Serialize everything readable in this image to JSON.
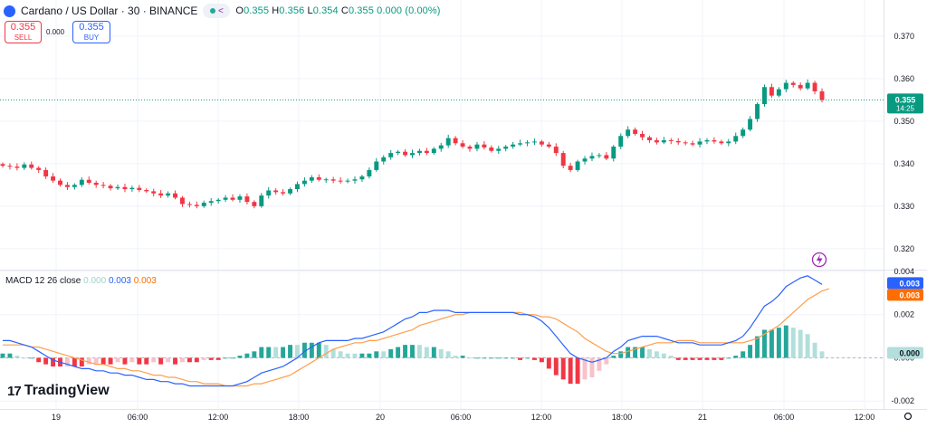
{
  "header": {
    "title": "Cardano / US Dollar · 30 · BINANCE",
    "ohlc": {
      "o_label": "O",
      "o": "0.355",
      "h_label": "H",
      "h": "0.356",
      "l_label": "L",
      "l": "0.354",
      "c_label": "C",
      "c": "0.355",
      "change": "0.000 (0.00%)"
    }
  },
  "trade": {
    "sell_price": "0.355",
    "sell_label": "SELL",
    "spread": "0.000",
    "buy_price": "0.355",
    "buy_label": "BUY"
  },
  "macd_legend": {
    "title": "MACD 12 26 close",
    "hist": "0.000",
    "macd": "0.003",
    "signal": "0.003"
  },
  "logo": {
    "mark": "17",
    "text": "TradingView"
  },
  "colors": {
    "up": "#089981",
    "down": "#f23645",
    "hist_up_strong": "#26a69a",
    "hist_up_weak": "#b2dfdb",
    "hist_down_strong": "#f23645",
    "hist_down_weak": "#f7c2c9",
    "macd": "#2962ff",
    "signal": "#ff9e4c",
    "price_line": "#089981"
  },
  "chart_data": {
    "type": "candlestick",
    "title": "Cardano / US Dollar · 30 · BINANCE",
    "price_axis": {
      "ticks": [
        "0.370",
        "0.360",
        "0.350",
        "0.340",
        "0.330",
        "0.320"
      ],
      "range": [
        0.3155,
        0.3755
      ]
    },
    "last_price": {
      "value": "0.355",
      "countdown": "14:25"
    },
    "time_axis": {
      "labels": [
        "19",
        "06:00",
        "12:00",
        "18:00",
        "20",
        "06:00",
        "12:00",
        "18:00",
        "21",
        "06:00",
        "12:00"
      ]
    },
    "close_approx": [
      0.3395,
      0.3393,
      0.339,
      0.3398,
      0.339,
      0.3385,
      0.337,
      0.336,
      0.335,
      0.3345,
      0.335,
      0.3362,
      0.3355,
      0.335,
      0.3348,
      0.3342,
      0.3345,
      0.334,
      0.3343,
      0.3338,
      0.3335,
      0.333,
      0.3325,
      0.333,
      0.332,
      0.3305,
      0.3303,
      0.33,
      0.3308,
      0.3312,
      0.3315,
      0.332,
      0.3315,
      0.3323,
      0.331,
      0.33,
      0.3325,
      0.3337,
      0.3333,
      0.333,
      0.334,
      0.3352,
      0.336,
      0.3368,
      0.3362,
      0.3363,
      0.336,
      0.3358,
      0.336,
      0.3363,
      0.337,
      0.3385,
      0.3405,
      0.3415,
      0.3425,
      0.3428,
      0.342,
      0.3425,
      0.343,
      0.3425,
      0.3435,
      0.3443,
      0.346,
      0.3448,
      0.344,
      0.3435,
      0.3445,
      0.3438,
      0.343,
      0.3435,
      0.344,
      0.3445,
      0.3448,
      0.345,
      0.3452,
      0.3445,
      0.344,
      0.3425,
      0.3395,
      0.3385,
      0.3405,
      0.3412,
      0.3418,
      0.342,
      0.3412,
      0.344,
      0.3465,
      0.348,
      0.347,
      0.3462,
      0.3455,
      0.345,
      0.3455,
      0.3453,
      0.345,
      0.3448,
      0.3445,
      0.3452,
      0.3455,
      0.3452,
      0.3448,
      0.3452,
      0.3465,
      0.348,
      0.3505,
      0.354,
      0.358,
      0.356,
      0.3575,
      0.359,
      0.3585,
      0.3577,
      0.359,
      0.357,
      0.355
    ],
    "macd_axis": {
      "ticks": [
        "0.004",
        "0.002",
        "0.000",
        "-0.002"
      ],
      "range": [
        -0.0022,
        0.004
      ]
    },
    "macd_approx": [
      0.0008,
      0.0008,
      0.0007,
      0.0006,
      0.0005,
      0.0003,
      0.0001,
      -0.0001,
      -0.0002,
      -0.0003,
      -0.0004,
      -0.0005,
      -0.0005,
      -0.0006,
      -0.0006,
      -0.0007,
      -0.0007,
      -0.0008,
      -0.0008,
      -0.0009,
      -0.001,
      -0.001,
      -0.0011,
      -0.0011,
      -0.0012,
      -0.0012,
      -0.0013,
      -0.0013,
      -0.0013,
      -0.0013,
      -0.0013,
      -0.0013,
      -0.0013,
      -0.0012,
      -0.0011,
      -0.0009,
      -0.0007,
      -0.0006,
      -0.0005,
      -0.0004,
      -0.0002,
      0.0,
      0.0003,
      0.0005,
      0.0007,
      0.0008,
      0.0008,
      0.0008,
      0.0008,
      0.0009,
      0.0009,
      0.001,
      0.0011,
      0.0012,
      0.0014,
      0.0016,
      0.0018,
      0.0019,
      0.0021,
      0.0021,
      0.0022,
      0.0022,
      0.0022,
      0.0021,
      0.0021,
      0.0021,
      0.0021,
      0.0021,
      0.0021,
      0.0021,
      0.0021,
      0.0021,
      0.002,
      0.002,
      0.0019,
      0.0017,
      0.0014,
      0.001,
      0.0006,
      0.0002,
      0.0,
      -0.0001,
      -0.0002,
      -0.0001,
      0.0,
      0.0003,
      0.0005,
      0.0008,
      0.0009,
      0.001,
      0.001,
      0.001,
      0.0009,
      0.0008,
      0.0007,
      0.0007,
      0.0007,
      0.0006,
      0.0006,
      0.0006,
      0.0006,
      0.0007,
      0.0008,
      0.001,
      0.0014,
      0.0019,
      0.0024,
      0.0026,
      0.0029,
      0.0033,
      0.0035,
      0.0037,
      0.0038,
      0.0036,
      0.0034
    ],
    "signal_approx": [
      0.0006,
      0.0006,
      0.0006,
      0.0006,
      0.0005,
      0.0005,
      0.0004,
      0.0003,
      0.0002,
      0.0001,
      0.0,
      -0.0001,
      -0.0002,
      -0.0003,
      -0.0003,
      -0.0004,
      -0.0005,
      -0.0005,
      -0.0006,
      -0.0006,
      -0.0007,
      -0.0008,
      -0.0008,
      -0.0009,
      -0.0009,
      -0.001,
      -0.0011,
      -0.0011,
      -0.0012,
      -0.0012,
      -0.0012,
      -0.0013,
      -0.0013,
      -0.0013,
      -0.0013,
      -0.0012,
      -0.0012,
      -0.0011,
      -0.001,
      -0.0009,
      -0.0008,
      -0.0006,
      -0.0004,
      -0.0002,
      0.0,
      0.0002,
      0.0004,
      0.0005,
      0.0006,
      0.0007,
      0.0007,
      0.0008,
      0.0008,
      0.0009,
      0.001,
      0.0011,
      0.0012,
      0.0013,
      0.0015,
      0.0016,
      0.0017,
      0.0018,
      0.0019,
      0.002,
      0.002,
      0.0021,
      0.0021,
      0.0021,
      0.0021,
      0.0021,
      0.0021,
      0.0021,
      0.0021,
      0.002,
      0.002,
      0.0019,
      0.0019,
      0.0018,
      0.0016,
      0.0014,
      0.0012,
      0.0009,
      0.0007,
      0.0005,
      0.0003,
      0.0002,
      0.0002,
      0.0003,
      0.0004,
      0.0005,
      0.0006,
      0.0007,
      0.0007,
      0.0007,
      0.0008,
      0.0008,
      0.0008,
      0.0007,
      0.0007,
      0.0007,
      0.0007,
      0.0007,
      0.0007,
      0.0007,
      0.0008,
      0.0009,
      0.0011,
      0.0013,
      0.0015,
      0.0018,
      0.0021,
      0.0024,
      0.0027,
      0.0029,
      0.0031,
      0.0032
    ]
  }
}
